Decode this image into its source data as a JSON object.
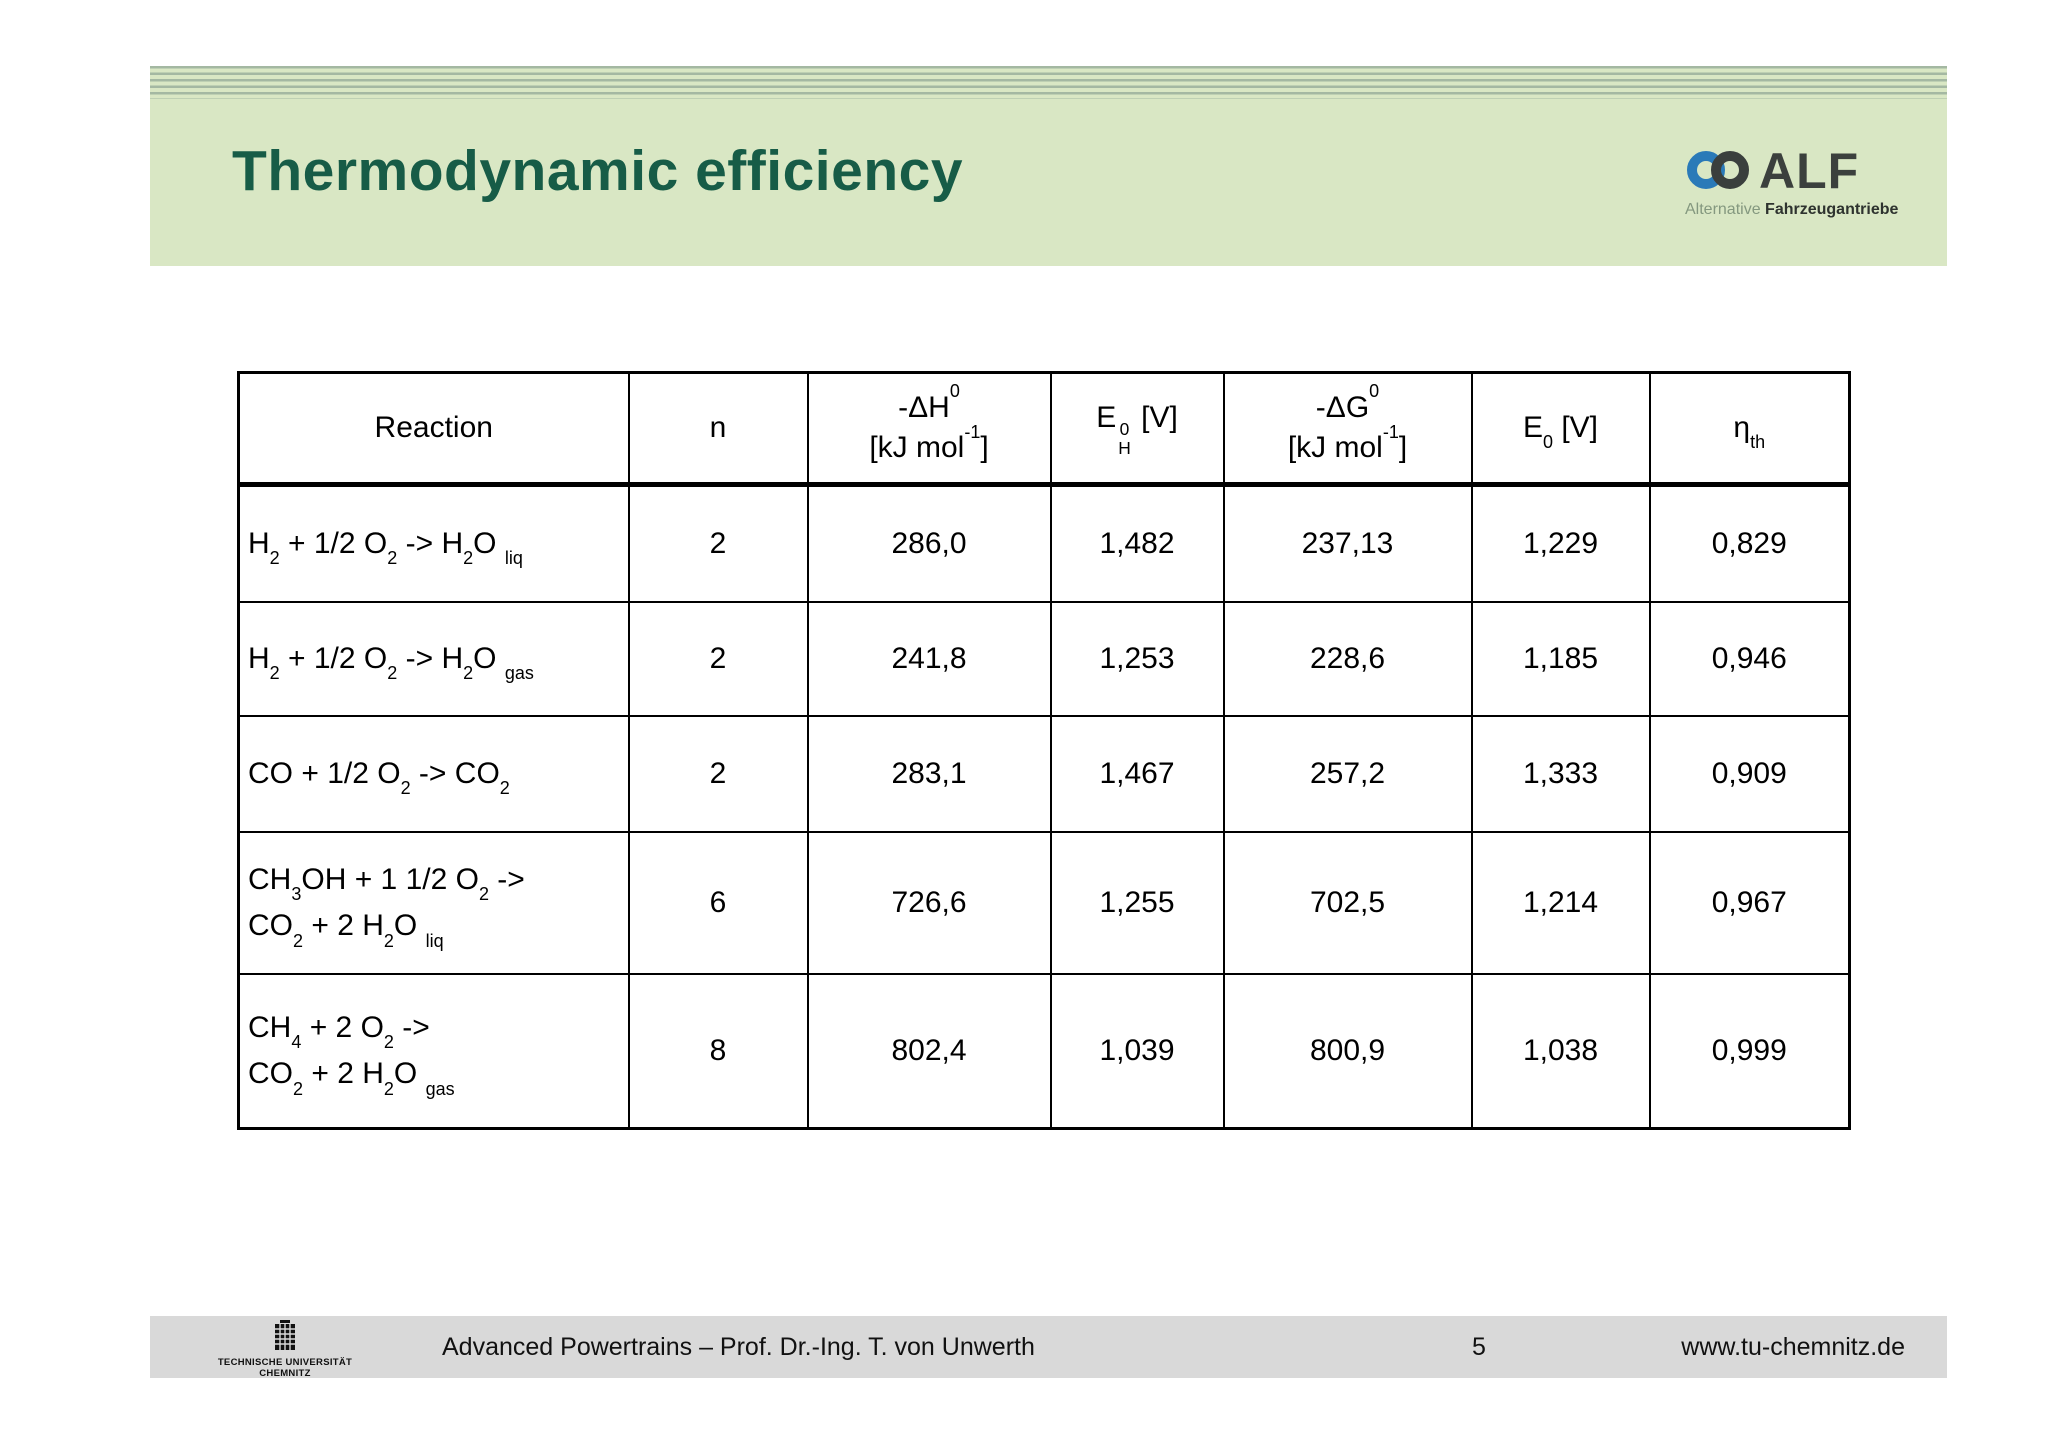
{
  "slide": {
    "title": "Thermodynamic efficiency",
    "logo": {
      "text": "ALF",
      "subtitle_light": "Alternative",
      "subtitle_bold": "Fahrzeugantriebe"
    },
    "colors": {
      "banner_green": "#d9e7c4",
      "stripe_green": "#a4b8a2",
      "title_green": "#175c47",
      "logo_blue": "#2a7ab8",
      "logo_dark": "#3a3f3d",
      "footer_gray": "#d9d9d9"
    }
  },
  "table": {
    "columns": [
      {
        "id": "reaction",
        "label": "Reaction"
      },
      {
        "id": "n",
        "label": "n"
      },
      {
        "id": "dH",
        "label": [
          {
            "t": "txt",
            "v": "-ΔH"
          },
          {
            "t": "sup",
            "v": "0"
          },
          {
            "t": "br"
          },
          {
            "t": "txt",
            "v": "[kJ mol"
          },
          {
            "t": "sup",
            "v": "-1"
          },
          {
            "t": "txt",
            "v": "]"
          }
        ]
      },
      {
        "id": "EH",
        "label": [
          {
            "t": "txt",
            "v": "E"
          },
          {
            "t": "stack",
            "sup": "0",
            "sub": "H"
          },
          {
            "t": "txt",
            "v": " [V]"
          }
        ]
      },
      {
        "id": "dG",
        "label": [
          {
            "t": "txt",
            "v": "-ΔG"
          },
          {
            "t": "sup",
            "v": "0"
          },
          {
            "t": "br"
          },
          {
            "t": "txt",
            "v": "[kJ mol"
          },
          {
            "t": "sup",
            "v": "-1"
          },
          {
            "t": "txt",
            "v": "]"
          }
        ]
      },
      {
        "id": "E0",
        "label": [
          {
            "t": "txt",
            "v": "E"
          },
          {
            "t": "sub",
            "v": "0"
          },
          {
            "t": "txt",
            "v": " [V]"
          }
        ]
      },
      {
        "id": "eta",
        "label": [
          {
            "t": "txt",
            "v": "η"
          },
          {
            "t": "sub",
            "v": "th"
          }
        ]
      }
    ],
    "rows": [
      {
        "reaction": [
          {
            "t": "txt",
            "v": "H"
          },
          {
            "t": "sub",
            "v": "2"
          },
          {
            "t": "txt",
            "v": " + 1/2 O"
          },
          {
            "t": "sub",
            "v": "2"
          },
          {
            "t": "txt",
            "v": " -> H"
          },
          {
            "t": "sub",
            "v": "2"
          },
          {
            "t": "txt",
            "v": "O "
          },
          {
            "t": "sub",
            "v": "liq"
          }
        ],
        "values": [
          "2",
          "286,0",
          "1,482",
          "237,13",
          "1,229",
          "0,829"
        ]
      },
      {
        "reaction": [
          {
            "t": "txt",
            "v": "H"
          },
          {
            "t": "sub",
            "v": "2"
          },
          {
            "t": "txt",
            "v": " + 1/2 O"
          },
          {
            "t": "sub",
            "v": "2"
          },
          {
            "t": "txt",
            "v": " -> H"
          },
          {
            "t": "sub",
            "v": "2"
          },
          {
            "t": "txt",
            "v": "O "
          },
          {
            "t": "sub",
            "v": "gas"
          }
        ],
        "values": [
          "2",
          "241,8",
          "1,253",
          "228,6",
          "1,185",
          "0,946"
        ]
      },
      {
        "reaction": [
          {
            "t": "txt",
            "v": "CO + 1/2 O"
          },
          {
            "t": "sub",
            "v": "2"
          },
          {
            "t": "txt",
            "v": " -> CO"
          },
          {
            "t": "sub",
            "v": "2"
          }
        ],
        "values": [
          "2",
          "283,1",
          "1,467",
          "257,2",
          "1,333",
          "0,909"
        ]
      },
      {
        "reaction": [
          {
            "t": "txt",
            "v": "CH"
          },
          {
            "t": "sub",
            "v": "3"
          },
          {
            "t": "txt",
            "v": "OH + 1 1/2 O"
          },
          {
            "t": "sub",
            "v": "2"
          },
          {
            "t": "txt",
            "v": " ->"
          },
          {
            "t": "br"
          },
          {
            "t": "txt",
            "v": "CO"
          },
          {
            "t": "sub",
            "v": "2"
          },
          {
            "t": "txt",
            "v": " + 2 H"
          },
          {
            "t": "sub",
            "v": "2"
          },
          {
            "t": "txt",
            "v": "O "
          },
          {
            "t": "sub",
            "v": "liq"
          }
        ],
        "values": [
          "6",
          "726,6",
          "1,255",
          "702,5",
          "1,214",
          "0,967"
        ]
      },
      {
        "reaction": [
          {
            "t": "txt",
            "v": "CH"
          },
          {
            "t": "sub",
            "v": "4"
          },
          {
            "t": "txt",
            "v": " + 2 O"
          },
          {
            "t": "sub",
            "v": "2"
          },
          {
            "t": "txt",
            "v": " ->"
          },
          {
            "t": "br"
          },
          {
            "t": "txt",
            "v": "CO"
          },
          {
            "t": "sub",
            "v": "2"
          },
          {
            "t": "txt",
            "v": " + 2 H"
          },
          {
            "t": "sub",
            "v": "2"
          },
          {
            "t": "txt",
            "v": "O "
          },
          {
            "t": "sub",
            "v": "gas"
          }
        ],
        "values": [
          "8",
          "802,4",
          "1,039",
          "800,9",
          "1,038",
          "0,999"
        ]
      }
    ]
  },
  "footer": {
    "org_line1": "TECHNISCHE UNIVERSITÄT",
    "org_line2": "CHEMNITZ",
    "course": "Advanced Powertrains – Prof. Dr.-Ing. T. von Unwerth",
    "page": "5",
    "url": "www.tu-chemnitz.de"
  }
}
